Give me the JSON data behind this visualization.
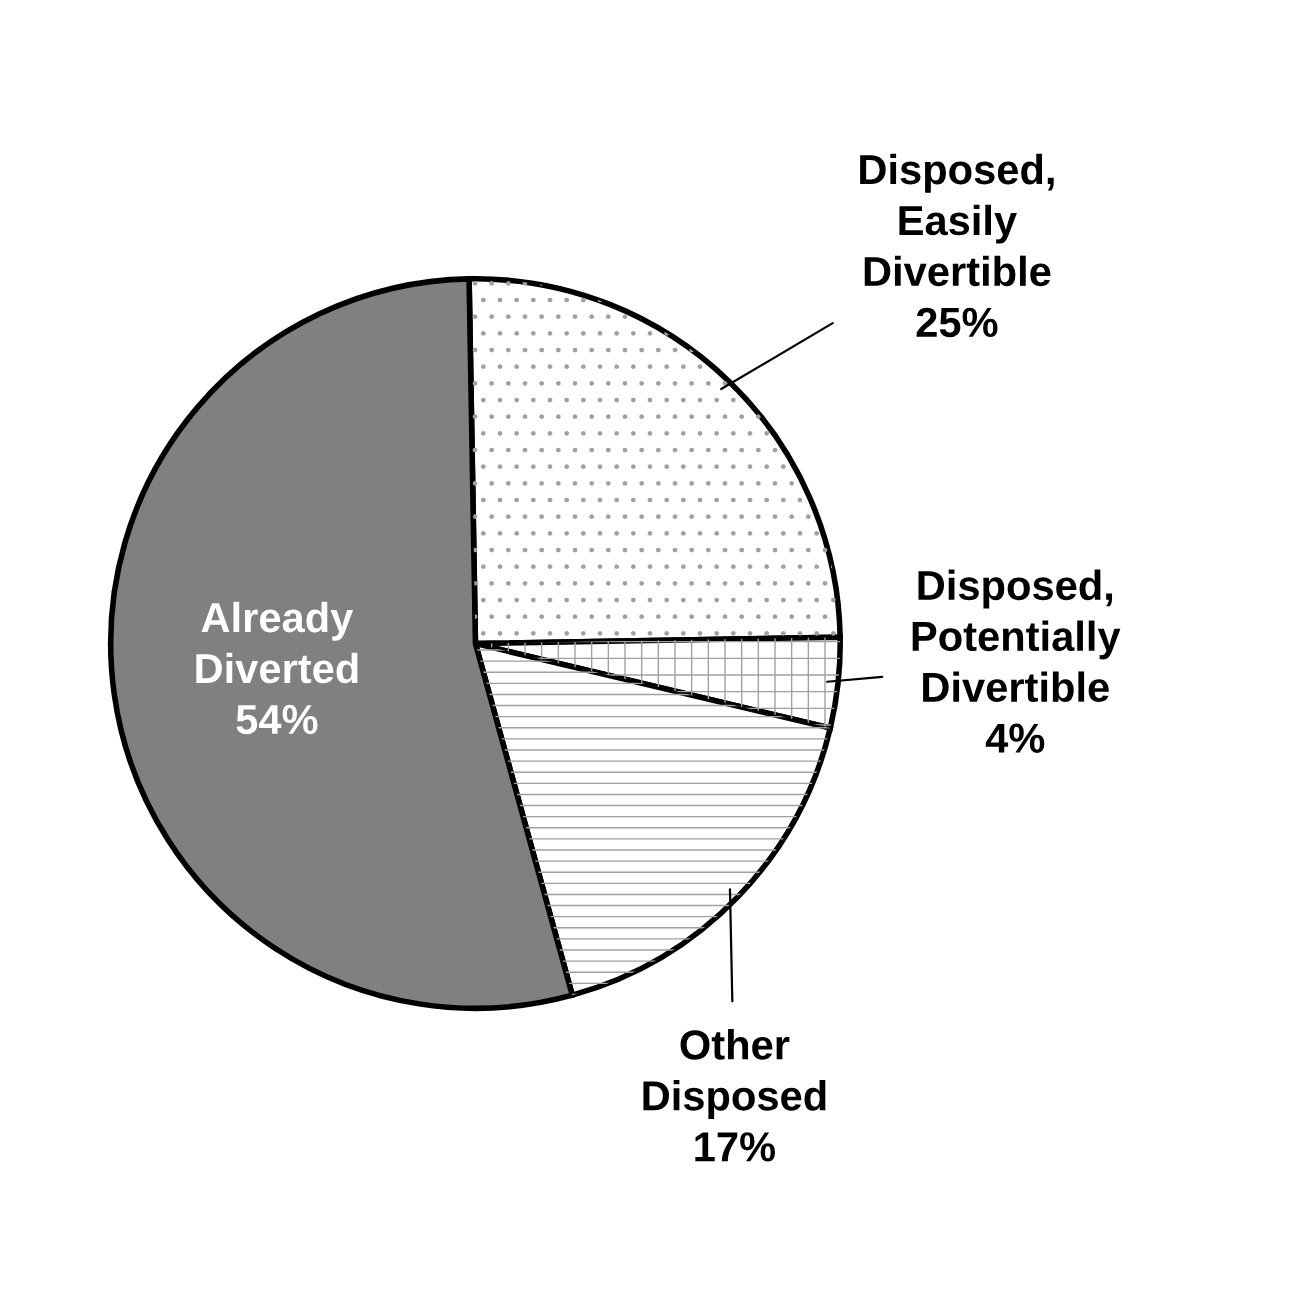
{
  "chart_data": {
    "type": "pie",
    "categories": [
      "Disposed,\nEasily\nDivertible",
      "Disposed,\nPotentially\nDivertible",
      "Other\nDisposed",
      "Already\nDiverted"
    ],
    "values": [
      25,
      4,
      17,
      54
    ],
    "value_labels": [
      "25%",
      "4%",
      "17%",
      "54%"
    ],
    "colors": [
      "#ffffff",
      "#ffffff",
      "#ffffff",
      "#808080"
    ],
    "legend": false
  }
}
